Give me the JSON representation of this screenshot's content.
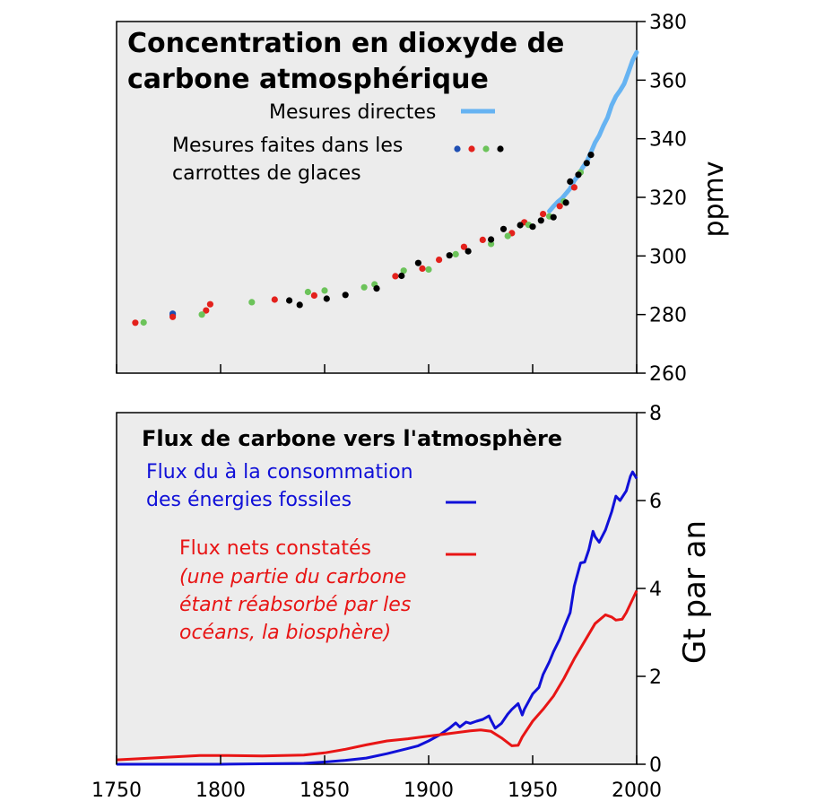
{
  "chart_data": [
    {
      "type": "scatter",
      "title_lines": [
        "Concentration en dioxyde de",
        "carbone atmosphérique"
      ],
      "ylabel": "ppmv",
      "ylim": [
        260,
        380
      ],
      "yticks": [
        "260",
        "280",
        "300",
        "320",
        "340",
        "360",
        "380"
      ],
      "xlim": [
        1750,
        2000
      ],
      "grid": false,
      "background": "#ececec",
      "legend": [
        {
          "label": "Mesures directes",
          "kind": "line",
          "colors": [
            "#66b3f2"
          ]
        },
        {
          "label_lines": [
            "Mesures faites dans les",
            "carrottes de glaces"
          ],
          "kind": "dots",
          "colors": [
            "#1f4fb3",
            "#e3211c",
            "#6cc35a",
            "#000000"
          ]
        }
      ],
      "series": [
        {
          "name": "Mesures directes",
          "kind": "line",
          "color": "#66b3f2",
          "x": [
            1958,
            1960,
            1962,
            1964,
            1966,
            1968,
            1970,
            1972,
            1974,
            1976,
            1978,
            1980,
            1982,
            1984,
            1986,
            1988,
            1990,
            1992,
            1994,
            1996,
            1998,
            2000
          ],
          "y": [
            315.3,
            316.9,
            318.4,
            319.6,
            321.3,
            323.0,
            325.7,
            327.5,
            330.2,
            332.1,
            335.4,
            338.7,
            341.1,
            344.4,
            347.2,
            351.5,
            354.4,
            356.4,
            358.8,
            362.6,
            366.7,
            369.5
          ]
        },
        {
          "name": "Mesures faites dans les carrottes de glaces",
          "kind": "dots",
          "color": "#1f4fb3",
          "x": [
            1777,
            1777
          ],
          "y": [
            280.3,
            279.8
          ]
        },
        {
          "name": "Mesures faites dans les carrottes de glaces",
          "kind": "dots",
          "color": "#e3211c",
          "x": [
            1759,
            1777,
            1793,
            1795,
            1826,
            1845,
            1884,
            1897,
            1905,
            1917,
            1926,
            1940,
            1946,
            1955,
            1963,
            1970
          ],
          "y": [
            277.2,
            279.2,
            281.4,
            283.5,
            285.1,
            286.5,
            293.1,
            295.7,
            298.7,
            303.1,
            305.5,
            307.8,
            311.5,
            314.3,
            317.0,
            323.4
          ]
        },
        {
          "name": "Mesures faites dans les carrottes de glaces",
          "kind": "dots",
          "color": "#6cc35a",
          "x": [
            1763,
            1791,
            1815,
            1842,
            1850,
            1869,
            1874,
            1888,
            1900,
            1913,
            1930,
            1938,
            1948,
            1958,
            1965,
            1973
          ],
          "y": [
            277.3,
            280.0,
            284.2,
            287.7,
            288.2,
            289.3,
            290.3,
            295.0,
            295.4,
            300.6,
            304.1,
            306.8,
            310.6,
            313.5,
            318.6,
            328.5
          ]
        },
        {
          "name": "Mesures faites dans les carrottes de glaces",
          "kind": "dots",
          "color": "#000000",
          "x": [
            1833,
            1838,
            1851,
            1860,
            1875,
            1887,
            1895,
            1910,
            1919,
            1930,
            1936,
            1944,
            1950,
            1954,
            1960,
            1966,
            1968,
            1972,
            1976,
            1978
          ],
          "y": [
            284.8,
            283.3,
            285.4,
            286.7,
            288.9,
            293.2,
            297.6,
            300.2,
            301.6,
            305.6,
            309.2,
            310.5,
            310.0,
            312.1,
            313.2,
            318.2,
            325.4,
            327.7,
            331.7,
            334.5
          ]
        }
      ]
    },
    {
      "type": "line",
      "title": "Flux de carbone vers l'atmosphère",
      "ylabel": "Gt par an",
      "ylim": [
        0,
        8
      ],
      "yticks": [
        "0",
        "2",
        "4",
        "6",
        "8"
      ],
      "xlim": [
        1750,
        2000
      ],
      "xticks": [
        "1750",
        "1800",
        "1850",
        "1900",
        "1950",
        "2000"
      ],
      "grid": false,
      "background": "#ececec",
      "legend": [
        {
          "label_lines": [
            "Flux du à la consommation",
            "des énergies fossiles"
          ],
          "color": "#1010d8",
          "italic": false
        },
        {
          "label_lines": [
            "Flux nets constatés",
            "(une partie du carbone",
            "étant réabsorbé par les",
            "océans, la biosphère)"
          ],
          "color": "#e81515",
          "italic_from": 1
        }
      ],
      "series": [
        {
          "name": "Flux du à la consommation des énergies fossiles",
          "color": "#1010d8",
          "x": [
            1750,
            1800,
            1840,
            1850,
            1860,
            1870,
            1880,
            1890,
            1895,
            1900,
            1905,
            1910,
            1913,
            1915,
            1918,
            1920,
            1923,
            1926,
            1929,
            1930,
            1932,
            1935,
            1938,
            1940,
            1943,
            1945,
            1946,
            1950,
            1953,
            1955,
            1958,
            1960,
            1963,
            1965,
            1968,
            1970,
            1973,
            1975,
            1977,
            1979,
            1980,
            1982,
            1985,
            1988,
            1990,
            1992,
            1995,
            1997,
            1998,
            2000
          ],
          "y": [
            0.0,
            0.0,
            0.02,
            0.05,
            0.09,
            0.14,
            0.24,
            0.36,
            0.42,
            0.53,
            0.66,
            0.82,
            0.94,
            0.85,
            0.96,
            0.93,
            0.98,
            1.02,
            1.1,
            1.0,
            0.82,
            0.93,
            1.14,
            1.25,
            1.38,
            1.12,
            1.25,
            1.6,
            1.75,
            2.04,
            2.33,
            2.56,
            2.85,
            3.1,
            3.45,
            4.05,
            4.58,
            4.6,
            4.88,
            5.3,
            5.18,
            5.05,
            5.33,
            5.75,
            6.1,
            6.0,
            6.22,
            6.55,
            6.65,
            6.5
          ]
        },
        {
          "name": "Flux nets constatés",
          "color": "#e81515",
          "x": [
            1750,
            1790,
            1800,
            1820,
            1840,
            1850,
            1860,
            1870,
            1880,
            1890,
            1900,
            1910,
            1920,
            1925,
            1930,
            1935,
            1940,
            1943,
            1945,
            1950,
            1955,
            1960,
            1965,
            1970,
            1975,
            1980,
            1985,
            1988,
            1990,
            1993,
            1995,
            2000
          ],
          "y": [
            0.1,
            0.2,
            0.2,
            0.19,
            0.21,
            0.26,
            0.34,
            0.44,
            0.53,
            0.58,
            0.64,
            0.7,
            0.76,
            0.78,
            0.75,
            0.6,
            0.42,
            0.43,
            0.62,
            0.98,
            1.25,
            1.55,
            1.95,
            2.4,
            2.8,
            3.2,
            3.4,
            3.35,
            3.28,
            3.3,
            3.45,
            3.95
          ]
        }
      ]
    }
  ]
}
